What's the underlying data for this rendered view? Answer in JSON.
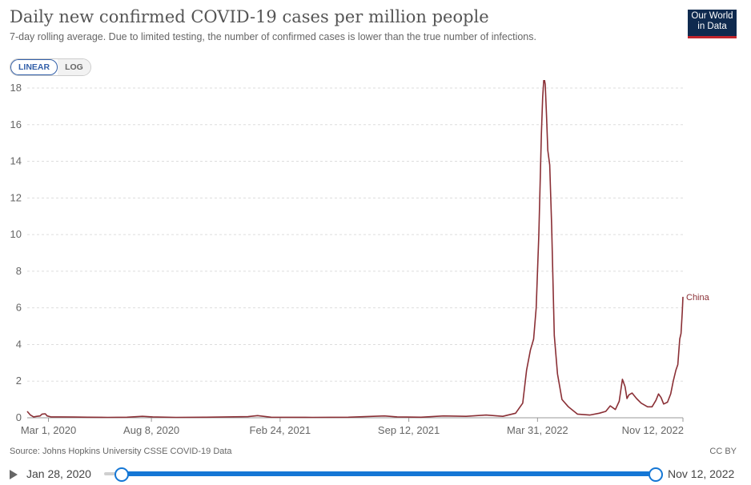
{
  "header": {
    "title": "Daily new confirmed COVID-19 cases per million people",
    "subtitle": "7-day rolling average. Due to limited testing, the number of confirmed cases is lower than the true number of infections.",
    "logo_line1": "Our World",
    "logo_line2": "in Data"
  },
  "controls": {
    "linear_label": "LINEAR",
    "log_label": "LOG",
    "active": "linear"
  },
  "footer": {
    "source": "Source: Johns Hopkins University CSSE COVID-19 Data",
    "license": "CC BY"
  },
  "timeline": {
    "start_label": "Jan 28, 2020",
    "end_label": "Nov 12, 2022",
    "start_position": 0,
    "end_position": 1
  },
  "colors": {
    "series": "#8a2f35",
    "grid": "#dddddd",
    "accent": "#1577d5"
  },
  "chart_data": {
    "type": "line",
    "title": "Daily new confirmed COVID-19 cases per million people",
    "subtitle": "7-day rolling average. Due to limited testing, the number of confirmed cases is lower than the true number of infections.",
    "xlabel": "",
    "ylabel": "",
    "x_range": [
      "2020-01-28",
      "2022-11-12"
    ],
    "ylim": [
      0,
      18
    ],
    "yticks": [
      0,
      2,
      4,
      6,
      8,
      10,
      12,
      14,
      16,
      18
    ],
    "x_tick_labels": [
      {
        "date": "2020-03-01",
        "label": "Mar 1, 2020"
      },
      {
        "date": "2020-08-08",
        "label": "Aug 8, 2020"
      },
      {
        "date": "2021-02-24",
        "label": "Feb 24, 2021"
      },
      {
        "date": "2021-09-12",
        "label": "Sep 12, 2021"
      },
      {
        "date": "2022-03-31",
        "label": "Mar 31, 2022"
      },
      {
        "date": "2022-11-12",
        "label": "Nov 12, 2022"
      }
    ],
    "grid": true,
    "legend": "label at line end",
    "series": [
      {
        "name": "China",
        "points": [
          [
            "2020-01-28",
            0.35
          ],
          [
            "2020-02-02",
            0.15
          ],
          [
            "2020-02-07",
            0.05
          ],
          [
            "2020-02-12",
            0.08
          ],
          [
            "2020-02-17",
            0.1
          ],
          [
            "2020-02-20",
            0.2
          ],
          [
            "2020-02-25",
            0.22
          ],
          [
            "2020-02-28",
            0.1
          ],
          [
            "2020-03-05",
            0.05
          ],
          [
            "2020-03-20",
            0.05
          ],
          [
            "2020-04-10",
            0.04
          ],
          [
            "2020-05-01",
            0.03
          ],
          [
            "2020-06-01",
            0.02
          ],
          [
            "2020-07-01",
            0.03
          ],
          [
            "2020-07-25",
            0.08
          ],
          [
            "2020-08-10",
            0.05
          ],
          [
            "2020-09-15",
            0.02
          ],
          [
            "2020-11-01",
            0.03
          ],
          [
            "2021-01-05",
            0.06
          ],
          [
            "2021-01-20",
            0.12
          ],
          [
            "2021-02-10",
            0.03
          ],
          [
            "2021-04-15",
            0.02
          ],
          [
            "2021-06-10",
            0.03
          ],
          [
            "2021-08-05",
            0.1
          ],
          [
            "2021-08-25",
            0.05
          ],
          [
            "2021-10-01",
            0.03
          ],
          [
            "2021-11-05",
            0.1
          ],
          [
            "2021-12-10",
            0.08
          ],
          [
            "2022-01-10",
            0.15
          ],
          [
            "2022-02-05",
            0.08
          ],
          [
            "2022-02-25",
            0.25
          ],
          [
            "2022-03-08",
            0.8
          ],
          [
            "2022-03-14",
            2.6
          ],
          [
            "2022-03-20",
            3.7
          ],
          [
            "2022-03-25",
            4.3
          ],
          [
            "2022-03-29",
            6.0
          ],
          [
            "2022-04-02",
            10.0
          ],
          [
            "2022-04-06",
            15.5
          ],
          [
            "2022-04-08",
            17.5
          ],
          [
            "2022-04-10",
            18.6
          ],
          [
            "2022-04-12",
            18.2
          ],
          [
            "2022-04-14",
            16.5
          ],
          [
            "2022-04-16",
            14.6
          ],
          [
            "2022-04-19",
            13.8
          ],
          [
            "2022-04-22",
            10.5
          ],
          [
            "2022-04-26",
            4.5
          ],
          [
            "2022-05-01",
            2.4
          ],
          [
            "2022-05-08",
            1.0
          ],
          [
            "2022-05-18",
            0.6
          ],
          [
            "2022-06-01",
            0.2
          ],
          [
            "2022-06-20",
            0.15
          ],
          [
            "2022-07-05",
            0.25
          ],
          [
            "2022-07-15",
            0.35
          ],
          [
            "2022-07-22",
            0.65
          ],
          [
            "2022-07-30",
            0.45
          ],
          [
            "2022-08-05",
            0.9
          ],
          [
            "2022-08-10",
            2.1
          ],
          [
            "2022-08-14",
            1.7
          ],
          [
            "2022-08-17",
            1.05
          ],
          [
            "2022-08-20",
            1.25
          ],
          [
            "2022-08-25",
            1.35
          ],
          [
            "2022-09-01",
            1.05
          ],
          [
            "2022-09-08",
            0.8
          ],
          [
            "2022-09-18",
            0.6
          ],
          [
            "2022-09-25",
            0.6
          ],
          [
            "2022-10-01",
            0.95
          ],
          [
            "2022-10-05",
            1.3
          ],
          [
            "2022-10-09",
            1.1
          ],
          [
            "2022-10-13",
            0.75
          ],
          [
            "2022-10-19",
            0.85
          ],
          [
            "2022-10-24",
            1.3
          ],
          [
            "2022-10-28",
            2.0
          ],
          [
            "2022-11-01",
            2.6
          ],
          [
            "2022-11-04",
            2.9
          ],
          [
            "2022-11-07",
            4.3
          ],
          [
            "2022-11-09",
            4.6
          ],
          [
            "2022-11-11",
            5.8
          ],
          [
            "2022-11-12",
            6.6
          ]
        ]
      }
    ]
  }
}
